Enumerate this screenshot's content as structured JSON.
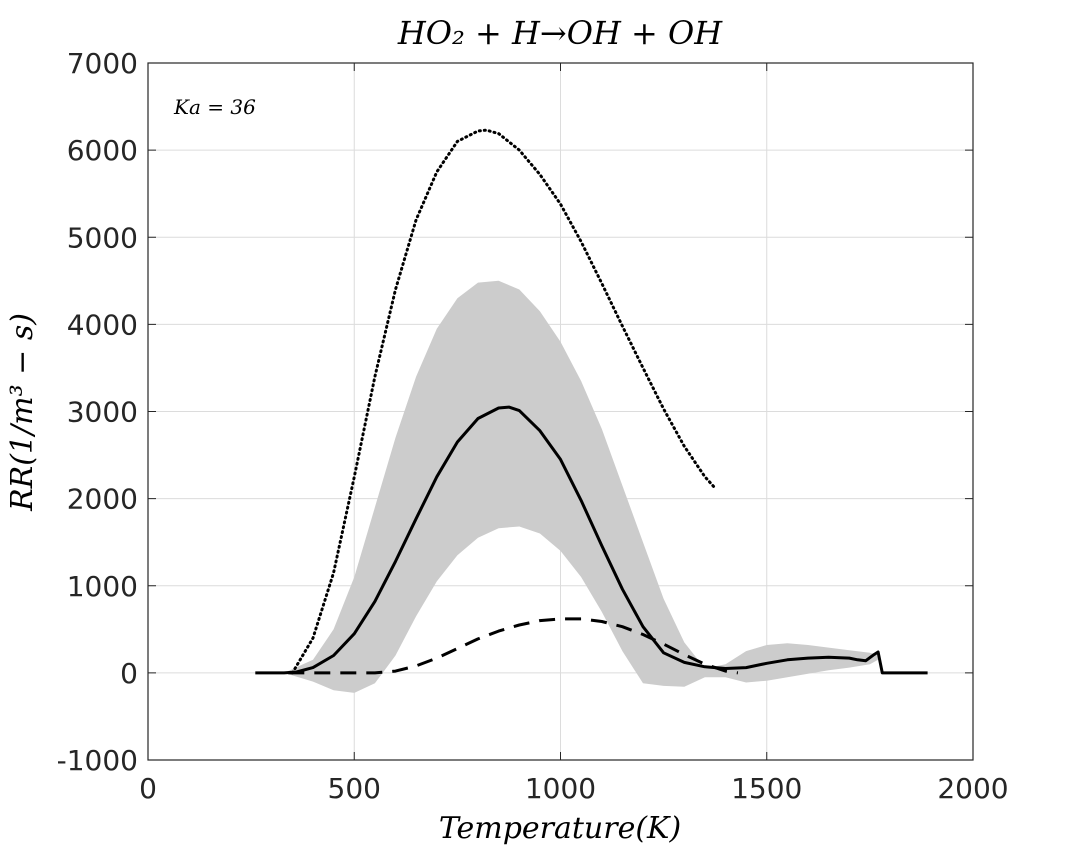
{
  "chart_data": {
    "type": "line",
    "title": "HO₂ + H→OH + OH",
    "xlabel": "Temperature(K)",
    "ylabel": "RR(1/m³ − s)",
    "annotation": "Ka = 36",
    "xlim": [
      0,
      2000
    ],
    "ylim": [
      -1000,
      7000
    ],
    "xticks": [
      0,
      500,
      1000,
      1500,
      2000
    ],
    "yticks": [
      -1000,
      0,
      1000,
      2000,
      3000,
      4000,
      5000,
      6000,
      7000
    ],
    "xtick_labels": [
      "0",
      "500",
      "1000",
      "1500",
      "2000"
    ],
    "ytick_labels": [
      "-1000",
      "0",
      "1000",
      "2000",
      "3000",
      "4000",
      "5000",
      "6000",
      "7000"
    ],
    "grid": true,
    "band": {
      "color": "#cccccc",
      "x": [
        260,
        330,
        400,
        450,
        500,
        550,
        600,
        650,
        700,
        750,
        800,
        850,
        900,
        950,
        1000,
        1050,
        1100,
        1150,
        1200,
        1250,
        1300,
        1350,
        1400,
        1450,
        1500,
        1550,
        1600,
        1650,
        1700,
        1750,
        1770
      ],
      "upper": [
        0,
        0,
        150,
        500,
        1100,
        1900,
        2700,
        3400,
        3950,
        4300,
        4480,
        4500,
        4400,
        4150,
        3800,
        3350,
        2800,
        2150,
        1500,
        850,
        350,
        50,
        100,
        250,
        320,
        340,
        320,
        290,
        260,
        230,
        200
      ],
      "lower": [
        0,
        0,
        -100,
        -200,
        -230,
        -120,
        200,
        650,
        1050,
        1350,
        1550,
        1660,
        1680,
        1600,
        1400,
        1100,
        700,
        250,
        -120,
        -150,
        -160,
        -50,
        -50,
        -110,
        -90,
        -50,
        -10,
        30,
        60,
        100,
        150
      ]
    },
    "series": [
      {
        "style": "solid",
        "color": "#000000",
        "x": [
          260,
          330,
          360,
          400,
          450,
          500,
          550,
          600,
          650,
          700,
          750,
          800,
          850,
          875,
          900,
          950,
          1000,
          1050,
          1100,
          1150,
          1200,
          1250,
          1300,
          1350,
          1400,
          1450,
          1500,
          1550,
          1600,
          1650,
          1700,
          1720,
          1740,
          1760,
          1770,
          1780,
          1800,
          1890
        ],
        "y": [
          0,
          0,
          10,
          60,
          200,
          450,
          820,
          1280,
          1770,
          2250,
          2650,
          2920,
          3040,
          3050,
          3010,
          2780,
          2450,
          1980,
          1460,
          960,
          530,
          230,
          120,
          70,
          50,
          60,
          110,
          150,
          170,
          180,
          170,
          150,
          140,
          210,
          240,
          0,
          0,
          0
        ]
      },
      {
        "style": "dotted",
        "color": "#000000",
        "x": [
          350,
          400,
          450,
          500,
          550,
          600,
          650,
          700,
          750,
          800,
          820,
          850,
          900,
          950,
          1000,
          1050,
          1100,
          1150,
          1200,
          1250,
          1300,
          1350,
          1375
        ],
        "y": [
          0,
          400,
          1150,
          2250,
          3400,
          4400,
          5200,
          5750,
          6100,
          6220,
          6230,
          6190,
          6000,
          5720,
          5380,
          4950,
          4470,
          3980,
          3500,
          3030,
          2600,
          2250,
          2120
        ]
      },
      {
        "style": "dashed",
        "color": "#000000",
        "x": [
          340,
          400,
          500,
          550,
          600,
          650,
          700,
          750,
          800,
          850,
          900,
          950,
          1000,
          1050,
          1100,
          1150,
          1200,
          1250,
          1300,
          1350,
          1400,
          1430
        ],
        "y": [
          0,
          0,
          0,
          0,
          20,
          80,
          170,
          280,
          390,
          480,
          550,
          600,
          620,
          620,
          590,
          530,
          440,
          330,
          210,
          100,
          20,
          0
        ]
      }
    ]
  }
}
